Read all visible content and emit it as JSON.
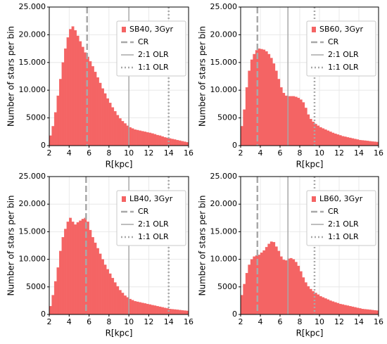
{
  "chart_data": [
    {
      "type": "histogram",
      "xlabel": "R[kpc]",
      "ylabel": "Number of stars per bin",
      "bins": [
        2,
        2.25,
        2.5,
        2.75,
        3,
        3.25,
        3.5,
        3.75,
        4,
        4.25,
        4.5,
        4.75,
        5,
        5.25,
        5.5,
        5.75,
        6,
        6.25,
        6.5,
        6.75,
        7,
        7.25,
        7.5,
        7.75,
        8,
        8.25,
        8.5,
        8.75,
        9,
        9.25,
        9.5,
        9.75,
        10,
        10.25,
        10.5,
        10.75,
        11,
        11.25,
        11.5,
        11.75,
        12,
        12.25,
        12.5,
        12.75,
        13,
        13.25,
        13.5,
        13.75,
        14,
        14.25,
        14.5,
        14.75,
        15,
        15.25,
        15.5,
        15.75,
        16
      ],
      "series": [
        {
          "name": "SB40, 3Gyr",
          "color": "#f46464",
          "values": [
            1800,
            3500,
            6000,
            9000,
            12000,
            15000,
            17500,
            19500,
            21000,
            21500,
            20800,
            19800,
            18800,
            17800,
            16800,
            16000,
            15200,
            14300,
            13300,
            12300,
            11300,
            10300,
            9400,
            8500,
            7700,
            6900,
            6200,
            5500,
            4900,
            4400,
            4000,
            3600,
            3300,
            3100,
            2900,
            2800,
            2700,
            2600,
            2500,
            2400,
            2300,
            2200,
            2050,
            1900,
            1800,
            1650,
            1500,
            1400,
            1300,
            1200,
            1100,
            1000,
            900,
            800,
            700,
            600
          ]
        }
      ],
      "vlines": [
        {
          "name": "CR",
          "x": 5.8,
          "style": "dashed"
        },
        {
          "name": "2:1 OLR",
          "x": 10.0,
          "style": "solid"
        },
        {
          "name": "1:1 OLR",
          "x": 14.0,
          "style": "dotted"
        }
      ],
      "xlim": [
        2,
        16
      ],
      "xticks": [
        2,
        4,
        6,
        8,
        10,
        12,
        14,
        16
      ],
      "ylim": [
        0,
        25000
      ],
      "yticks": [
        0,
        {
          "value": 5000,
          "label": "5000"
        },
        {
          "value": 10000,
          "label": "10.000"
        },
        {
          "value": 15000,
          "label": "15.000"
        },
        {
          "value": 20000,
          "label": "20.000"
        },
        {
          "value": 25000,
          "label": "25.000"
        }
      ],
      "grid": true,
      "legend": "upper right"
    },
    {
      "type": "histogram",
      "xlabel": "R[kpc]",
      "ylabel": "Number of stars per bin",
      "bins": [
        2,
        2.25,
        2.5,
        2.75,
        3,
        3.25,
        3.5,
        3.75,
        4,
        4.25,
        4.5,
        4.75,
        5,
        5.25,
        5.5,
        5.75,
        6,
        6.25,
        6.5,
        6.75,
        7,
        7.25,
        7.5,
        7.75,
        8,
        8.25,
        8.5,
        8.75,
        9,
        9.25,
        9.5,
        9.75,
        10,
        10.25,
        10.5,
        10.75,
        11,
        11.25,
        11.5,
        11.75,
        12,
        12.25,
        12.5,
        12.75,
        13,
        13.25,
        13.5,
        13.75,
        14,
        14.25,
        14.5,
        14.75,
        15,
        15.25,
        15.5,
        15.75,
        16
      ],
      "series": [
        {
          "name": "SB60, 3Gyr",
          "color": "#f46464",
          "values": [
            3500,
            6500,
            10500,
            13500,
            15500,
            16500,
            17200,
            17500,
            17400,
            17300,
            17000,
            16500,
            15800,
            14800,
            13500,
            12000,
            10500,
            9500,
            9000,
            8900,
            8900,
            8900,
            8800,
            8600,
            8300,
            7800,
            6800,
            5600,
            4800,
            4300,
            3900,
            3600,
            3300,
            3100,
            2900,
            2700,
            2500,
            2300,
            2150,
            2000,
            1850,
            1700,
            1600,
            1500,
            1400,
            1300,
            1200,
            1100,
            1000,
            950,
            900,
            850,
            800,
            750,
            700,
            650
          ]
        }
      ],
      "vlines": [
        {
          "name": "CR",
          "x": 3.7,
          "style": "dashed"
        },
        {
          "name": "2:1 OLR",
          "x": 6.8,
          "style": "solid"
        },
        {
          "name": "1:1 OLR",
          "x": 9.5,
          "style": "dotted"
        }
      ],
      "xlim": [
        2,
        16
      ],
      "xticks": [
        2,
        4,
        6,
        8,
        10,
        12,
        14,
        16
      ],
      "ylim": [
        0,
        25000
      ],
      "yticks": [
        0,
        {
          "value": 5000,
          "label": "5000"
        },
        {
          "value": 10000,
          "label": "10.000"
        },
        {
          "value": 15000,
          "label": "15.000"
        },
        {
          "value": 20000,
          "label": "20.000"
        },
        {
          "value": 25000,
          "label": "25.000"
        }
      ],
      "grid": true,
      "legend": "upper right"
    },
    {
      "type": "histogram",
      "xlabel": "R[kpc]",
      "ylabel": "Number of stars per bin",
      "bins": [
        2,
        2.25,
        2.5,
        2.75,
        3,
        3.25,
        3.5,
        3.75,
        4,
        4.25,
        4.5,
        4.75,
        5,
        5.25,
        5.5,
        5.75,
        6,
        6.25,
        6.5,
        6.75,
        7,
        7.25,
        7.5,
        7.75,
        8,
        8.25,
        8.5,
        8.75,
        9,
        9.25,
        9.5,
        9.75,
        10,
        10.25,
        10.5,
        10.75,
        11,
        11.25,
        11.5,
        11.75,
        12,
        12.25,
        12.5,
        12.75,
        13,
        13.25,
        13.5,
        13.75,
        14,
        14.25,
        14.5,
        14.75,
        15,
        15.25,
        15.5,
        15.75,
        16
      ],
      "series": [
        {
          "name": "LB40, 3Gyr",
          "color": "#f46464",
          "values": [
            1500,
            3500,
            6000,
            8500,
            11500,
            14000,
            15500,
            16800,
            17500,
            16800,
            16300,
            16700,
            17000,
            17300,
            17500,
            16800,
            15300,
            14000,
            13000,
            12000,
            11000,
            10000,
            9000,
            8200,
            7400,
            6600,
            5800,
            5100,
            4400,
            3900,
            3400,
            3100,
            2800,
            2600,
            2400,
            2300,
            2200,
            2100,
            2000,
            1900,
            1800,
            1700,
            1600,
            1500,
            1400,
            1300,
            1200,
            1100,
            1000,
            950,
            900,
            850,
            800,
            750,
            700,
            650
          ]
        }
      ],
      "vlines": [
        {
          "name": "CR",
          "x": 5.7,
          "style": "dashed"
        },
        {
          "name": "2:1 OLR",
          "x": 10.0,
          "style": "solid"
        },
        {
          "name": "1:1 OLR",
          "x": 14.0,
          "style": "dotted"
        }
      ],
      "xlim": [
        2,
        16
      ],
      "xticks": [
        2,
        4,
        6,
        8,
        10,
        12,
        14,
        16
      ],
      "ylim": [
        0,
        25000
      ],
      "yticks": [
        0,
        {
          "value": 5000,
          "label": "5000"
        },
        {
          "value": 10000,
          "label": "10.000"
        },
        {
          "value": 15000,
          "label": "15.000"
        },
        {
          "value": 20000,
          "label": "20.000"
        },
        {
          "value": 25000,
          "label": "25.000"
        }
      ],
      "grid": true,
      "legend": "upper right"
    },
    {
      "type": "histogram",
      "xlabel": "R[kpc]",
      "ylabel": "Number of stars per bin",
      "bins": [
        2,
        2.25,
        2.5,
        2.75,
        3,
        3.25,
        3.5,
        3.75,
        4,
        4.25,
        4.5,
        4.75,
        5,
        5.25,
        5.5,
        5.75,
        6,
        6.25,
        6.5,
        6.75,
        7,
        7.25,
        7.5,
        7.75,
        8,
        8.25,
        8.5,
        8.75,
        9,
        9.25,
        9.5,
        9.75,
        10,
        10.25,
        10.5,
        10.75,
        11,
        11.25,
        11.5,
        11.75,
        12,
        12.25,
        12.5,
        12.75,
        13,
        13.25,
        13.5,
        13.75,
        14,
        14.25,
        14.5,
        14.75,
        15,
        15.25,
        15.5,
        15.75,
        16
      ],
      "series": [
        {
          "name": "LB60, 3Gyr",
          "color": "#f46464",
          "values": [
            3500,
            5500,
            7500,
            9000,
            10000,
            10500,
            10700,
            10800,
            11200,
            11600,
            12200,
            12800,
            13200,
            13100,
            12300,
            11500,
            10500,
            9900,
            9800,
            10100,
            10200,
            10000,
            9500,
            8800,
            7800,
            6700,
            5800,
            5100,
            4600,
            4200,
            3900,
            3600,
            3300,
            3100,
            2900,
            2700,
            2500,
            2350,
            2200,
            2050,
            1900,
            1800,
            1700,
            1600,
            1500,
            1400,
            1300,
            1200,
            1100,
            1000,
            950,
            900,
            850,
            800,
            750,
            700
          ]
        }
      ],
      "vlines": [
        {
          "name": "CR",
          "x": 3.7,
          "style": "dashed"
        },
        {
          "name": "2:1 OLR",
          "x": 6.8,
          "style": "solid"
        },
        {
          "name": "1:1 OLR",
          "x": 9.5,
          "style": "dotted"
        }
      ],
      "xlim": [
        2,
        16
      ],
      "xticks": [
        2,
        4,
        6,
        8,
        10,
        12,
        14,
        16
      ],
      "ylim": [
        0,
        25000
      ],
      "yticks": [
        0,
        {
          "value": 5000,
          "label": "5000"
        },
        {
          "value": 10000,
          "label": "10.000"
        },
        {
          "value": 15000,
          "label": "15.000"
        },
        {
          "value": 20000,
          "label": "20.000"
        },
        {
          "value": 25000,
          "label": "25.000"
        }
      ],
      "grid": true,
      "legend": "upper right"
    }
  ]
}
